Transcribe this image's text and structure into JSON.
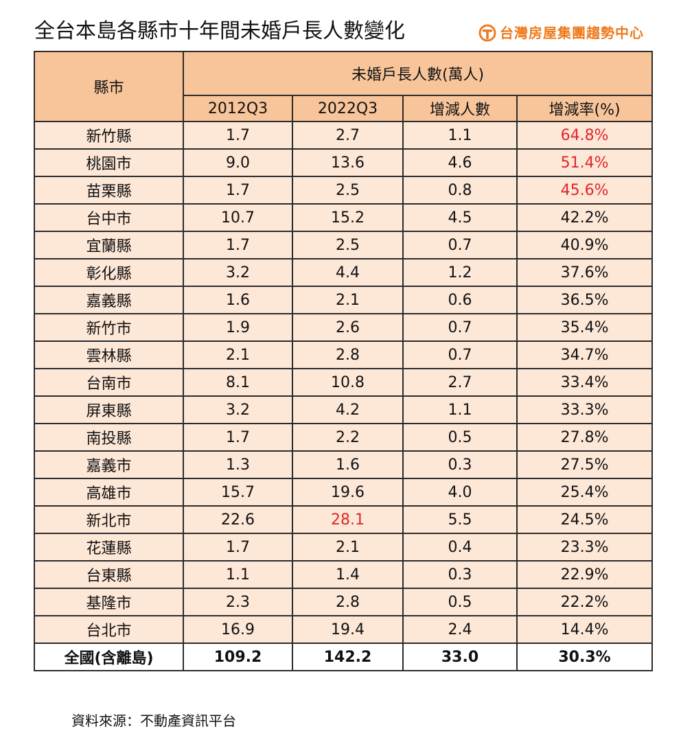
{
  "title": "全台本島各縣市十年間未婚戶長人數變化",
  "brand": {
    "name": "台灣房屋集團趨勢中心",
    "icon": "taiwan-realty-logo-icon",
    "color": "#ee7b1d"
  },
  "table": {
    "header_city": "縣市",
    "header_group": "未婚戶長人數(萬人)",
    "columns": [
      "2012Q3",
      "2022Q3",
      "增減人數",
      "增減率(%)"
    ],
    "rows": [
      {
        "city": "新竹縣",
        "y2012": "1.7",
        "y2022": "2.7",
        "change": "1.1",
        "rate": "64.8%"
      },
      {
        "city": "桃園市",
        "y2012": "9.0",
        "y2022": "13.6",
        "change": "4.6",
        "rate": "51.4%"
      },
      {
        "city": "苗栗縣",
        "y2012": "1.7",
        "y2022": "2.5",
        "change": "0.8",
        "rate": "45.6%"
      },
      {
        "city": "台中市",
        "y2012": "10.7",
        "y2022": "15.2",
        "change": "4.5",
        "rate": "42.2%"
      },
      {
        "city": "宜蘭縣",
        "y2012": "1.7",
        "y2022": "2.5",
        "change": "0.7",
        "rate": "40.9%"
      },
      {
        "city": "彰化縣",
        "y2012": "3.2",
        "y2022": "4.4",
        "change": "1.2",
        "rate": "37.6%"
      },
      {
        "city": "嘉義縣",
        "y2012": "1.6",
        "y2022": "2.1",
        "change": "0.6",
        "rate": "36.5%"
      },
      {
        "city": "新竹市",
        "y2012": "1.9",
        "y2022": "2.6",
        "change": "0.7",
        "rate": "35.4%"
      },
      {
        "city": "雲林縣",
        "y2012": "2.1",
        "y2022": "2.8",
        "change": "0.7",
        "rate": "34.7%"
      },
      {
        "city": "台南市",
        "y2012": "8.1",
        "y2022": "10.8",
        "change": "2.7",
        "rate": "33.4%"
      },
      {
        "city": "屏東縣",
        "y2012": "3.2",
        "y2022": "4.2",
        "change": "1.1",
        "rate": "33.3%"
      },
      {
        "city": "南投縣",
        "y2012": "1.7",
        "y2022": "2.2",
        "change": "0.5",
        "rate": "27.8%"
      },
      {
        "city": "嘉義市",
        "y2012": "1.3",
        "y2022": "1.6",
        "change": "0.3",
        "rate": "27.5%"
      },
      {
        "city": "高雄市",
        "y2012": "15.7",
        "y2022": "19.6",
        "change": "4.0",
        "rate": "25.4%"
      },
      {
        "city": "新北市",
        "y2012": "22.6",
        "y2022": "28.1",
        "change": "5.5",
        "rate": "24.5%"
      },
      {
        "city": "花蓮縣",
        "y2012": "1.7",
        "y2022": "2.1",
        "change": "0.4",
        "rate": "23.3%"
      },
      {
        "city": "台東縣",
        "y2012": "1.1",
        "y2022": "1.4",
        "change": "0.3",
        "rate": "22.9%"
      },
      {
        "city": "基隆市",
        "y2012": "2.3",
        "y2022": "2.8",
        "change": "0.5",
        "rate": "22.2%"
      },
      {
        "city": "台北市",
        "y2012": "16.9",
        "y2022": "19.4",
        "change": "2.4",
        "rate": "14.4%"
      }
    ],
    "total": {
      "city": "全國(含離島)",
      "y2012": "109.2",
      "y2022": "142.2",
      "change": "33.0",
      "rate": "30.3%"
    },
    "highlight_color": "#e0262a",
    "header_bg": "#f8c59b",
    "row_bg": "#fde7d7"
  },
  "source": "資料來源：不動產資訊平台"
}
